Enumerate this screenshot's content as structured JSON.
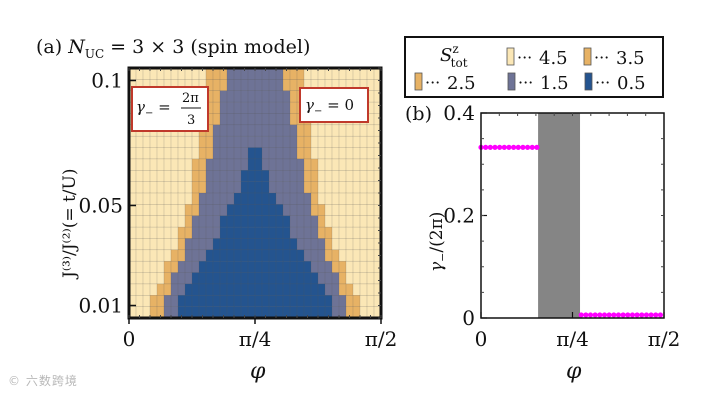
{
  "chart_data": [
    {
      "type": "heatmap",
      "panel_label": "(a)",
      "title_prefix": "(a) N",
      "title_sub": "UC",
      "title_suffix": " = 3 × 3 (spin model)",
      "xlabel": "φ",
      "ylabel": "J⁽³⁾/J⁽²⁾(= t/U)",
      "xlim": [
        0,
        1.5708
      ],
      "x_ticks": [
        "0",
        "π/4",
        "π/2"
      ],
      "y_ticks": [
        "0.1",
        "0.05",
        "0.01"
      ],
      "y_tick_values": [
        0.1,
        0.05,
        0.01
      ],
      "ylim": [
        0.005,
        0.105
      ],
      "legend": {
        "title": "S",
        "title_sup": "z",
        "title_sub": "tot",
        "entries": [
          {
            "label": "4.5",
            "color": "#fbe7b6"
          },
          {
            "label": "3.5",
            "color": "#e7b265"
          },
          {
            "label": "2.5",
            "color": "#e7b265"
          },
          {
            "label": "1.5",
            "color": "#6e7396"
          },
          {
            "label": "0.5",
            "color": "#24548f"
          }
        ]
      },
      "annotations": [
        {
          "label": "γ₋ = 2π/3",
          "text_gamma": "γ",
          "text_sub": "−",
          "text_eq": " = ",
          "frac_num": "2π",
          "frac_den": "3"
        },
        {
          "label": "γ₋ = 0",
          "text_gamma": "γ",
          "text_sub": "−",
          "text_eq": " = 0"
        }
      ],
      "phase_boundaries": [
        {
          "y": 0.1,
          "x_half_width_3_5": 0.3,
          "x_half_width_1_5": 0.18,
          "x_half_width_0_5": 0.0
        },
        {
          "y": 0.075,
          "x_half_width_3_5": 0.36,
          "x_half_width_1_5": 0.26,
          "x_half_width_0_5": 0.0
        },
        {
          "y": 0.05,
          "x_half_width_3_5": 0.42,
          "x_half_width_1_5": 0.34,
          "x_half_width_0_5": 0.14
        },
        {
          "y": 0.03,
          "x_half_width_3_5": 0.52,
          "x_half_width_1_5": 0.44,
          "x_half_width_0_5": 0.32
        },
        {
          "y": 0.01,
          "x_half_width_3_5": 0.66,
          "x_half_width_1_5": 0.58,
          "x_half_width_0_5": 0.5
        }
      ],
      "center_x": 0.785,
      "colors": {
        "s45": "#fbe7b6",
        "s35": "#e7b265",
        "s15": "#6e7396",
        "s05": "#24548f"
      }
    },
    {
      "type": "scatter",
      "panel_label": "(b)",
      "xlabel": "φ",
      "ylabel": "γ₋/(2π)",
      "ylabel_gamma": "γ",
      "ylabel_sub": "−",
      "ylabel_rest": "/(2π)",
      "xlim": [
        0,
        1.5708
      ],
      "ylim": [
        0,
        0.4
      ],
      "x_ticks": [
        "0",
        "π/4",
        "π/2"
      ],
      "y_ticks": [
        "0",
        "0.2",
        "0.4"
      ],
      "y_tick_values": [
        0,
        0.2,
        0.4
      ],
      "shaded_region": [
        0.49,
        0.85
      ],
      "series": [
        {
          "color": "#ff00ff",
          "y": 0.333,
          "x": [
            0.0,
            0.04,
            0.08,
            0.12,
            0.16,
            0.2,
            0.24,
            0.28,
            0.32,
            0.36,
            0.4,
            0.44,
            0.48
          ]
        },
        {
          "color": "#ff00ff",
          "y": 0.006,
          "x": [
            0.86,
            0.9,
            0.94,
            0.98,
            1.02,
            1.06,
            1.1,
            1.14,
            1.18,
            1.22,
            1.26,
            1.3,
            1.34,
            1.38,
            1.42,
            1.46,
            1.5,
            1.54
          ]
        }
      ]
    }
  ],
  "watermark": "© 六数跨境"
}
